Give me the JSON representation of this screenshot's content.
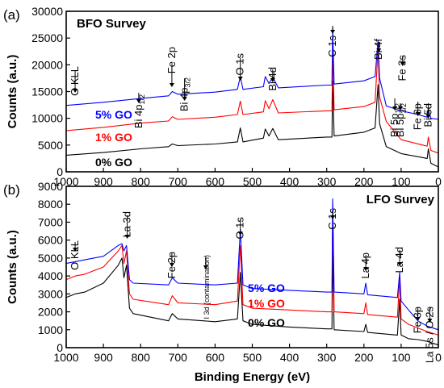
{
  "chart_data": [
    {
      "type": "line",
      "panel_label": "(a)",
      "title": "BFO Survey",
      "xlabel": "",
      "ylabel": "Counts (a.u.)",
      "xlim": [
        1000,
        0
      ],
      "ylim": [
        0,
        30000
      ],
      "yticks": [
        0,
        5000,
        10000,
        15000,
        20000,
        25000,
        30000
      ],
      "xticks": [
        1000,
        900,
        800,
        700,
        600,
        500,
        400,
        300,
        200,
        100,
        0
      ],
      "series": [
        {
          "name": "0% GO",
          "color": "#000000",
          "points": [
            [
              1000,
              3100
            ],
            [
              900,
              3600
            ],
            [
              800,
              4300
            ],
            [
              725,
              4700
            ],
            [
              715,
              5200
            ],
            [
              700,
              4900
            ],
            [
              600,
              5200
            ],
            [
              540,
              5600
            ],
            [
              532,
              8200
            ],
            [
              525,
              5600
            ],
            [
              470,
              6300
            ],
            [
              465,
              8000
            ],
            [
              455,
              6700
            ],
            [
              445,
              8100
            ],
            [
              430,
              6000
            ],
            [
              300,
              6500
            ],
            [
              286,
              6500
            ],
            [
              284,
              17000
            ],
            [
              280,
              6700
            ],
            [
              200,
              7400
            ],
            [
              170,
              8200
            ],
            [
              162,
              16300
            ],
            [
              158,
              9000
            ],
            [
              140,
              4700
            ],
            [
              100,
              3400
            ],
            [
              60,
              2900
            ],
            [
              30,
              2500
            ],
            [
              27,
              4300
            ],
            [
              20,
              1600
            ],
            [
              0,
              900
            ]
          ]
        },
        {
          "name": "1% GO",
          "color": "#ff0000",
          "points": [
            [
              1000,
              7700
            ],
            [
              900,
              8300
            ],
            [
              800,
              9100
            ],
            [
              725,
              9500
            ],
            [
              715,
              10300
            ],
            [
              700,
              9800
            ],
            [
              600,
              10200
            ],
            [
              540,
              10700
            ],
            [
              532,
              13200
            ],
            [
              525,
              10700
            ],
            [
              470,
              11200
            ],
            [
              465,
              13300
            ],
            [
              455,
              11800
            ],
            [
              445,
              13500
            ],
            [
              430,
              11000
            ],
            [
              300,
              11400
            ],
            [
              286,
              11400
            ],
            [
              284,
              23000
            ],
            [
              280,
              11600
            ],
            [
              200,
              12200
            ],
            [
              170,
              13000
            ],
            [
              162,
              23000
            ],
            [
              158,
              14000
            ],
            [
              140,
              9400
            ],
            [
              100,
              6000
            ],
            [
              60,
              5300
            ],
            [
              30,
              4800
            ],
            [
              27,
              6500
            ],
            [
              20,
              4000
            ],
            [
              0,
              3500
            ]
          ]
        },
        {
          "name": "5% GO",
          "color": "#0000ff",
          "points": [
            [
              1000,
              12400
            ],
            [
              900,
              13000
            ],
            [
              800,
              13700
            ],
            [
              725,
              14200
            ],
            [
              715,
              15000
            ],
            [
              700,
              14500
            ],
            [
              600,
              14900
            ],
            [
              540,
              15400
            ],
            [
              532,
              17800
            ],
            [
              525,
              15400
            ],
            [
              470,
              15900
            ],
            [
              465,
              17800
            ],
            [
              455,
              16500
            ],
            [
              445,
              17700
            ],
            [
              430,
              15700
            ],
            [
              300,
              16200
            ],
            [
              286,
              16200
            ],
            [
              284,
              27000
            ],
            [
              280,
              16400
            ],
            [
              200,
              17000
            ],
            [
              170,
              17800
            ],
            [
              162,
              24500
            ],
            [
              158,
              17500
            ],
            [
              140,
              12300
            ],
            [
              100,
              11400
            ],
            [
              60,
              10800
            ],
            [
              30,
              10200
            ],
            [
              27,
              11700
            ],
            [
              20,
              10000
            ],
            [
              0,
              9800
            ]
          ]
        }
      ],
      "series_labels": [
        "5% GO",
        "1% GO",
        "0% GO"
      ],
      "annotations": [
        {
          "label": "O KLL",
          "x": 976
        },
        {
          "label": "Bi 4p",
          "sub": "1/2",
          "x": 805
        },
        {
          "label": "Fe 2p",
          "x": 716
        },
        {
          "label": "Bi 4p",
          "sub": "3/2",
          "x": 682
        },
        {
          "label": "O 1s",
          "x": 532
        },
        {
          "label": "Bi 4d",
          "x": 445
        },
        {
          "label": "C 1s",
          "x": 284
        },
        {
          "label": "Bi 4f",
          "x": 160
        },
        {
          "label": "Fe 3s",
          "x": 96
        },
        {
          "label": "Bi 5p",
          "sub": "1/2",
          "x": 117
        },
        {
          "label": "Bi 5p",
          "sub": "3/2",
          "x": 102
        },
        {
          "label": "Fe 3p",
          "x": 55
        },
        {
          "label": "Bi 5d",
          "x": 27
        }
      ]
    },
    {
      "type": "line",
      "panel_label": "(b)",
      "title": "LFO Survey",
      "xlabel": "Binding Energy (eV)",
      "ylabel": "Counts (a.u.)",
      "xlim": [
        1000,
        0
      ],
      "ylim": [
        0,
        9000
      ],
      "yticks": [
        0,
        1000,
        2000,
        3000,
        4000,
        5000,
        6000,
        7000,
        8000,
        9000
      ],
      "xticks": [
        1000,
        900,
        800,
        700,
        600,
        500,
        400,
        300,
        200,
        100,
        0
      ],
      "series": [
        {
          "name": "0% GO",
          "color": "#000000",
          "points": [
            [
              1000,
              2800
            ],
            [
              975,
              3000
            ],
            [
              950,
              3100
            ],
            [
              900,
              3600
            ],
            [
              860,
              4600
            ],
            [
              850,
              5000
            ],
            [
              845,
              3900
            ],
            [
              838,
              4600
            ],
            [
              830,
              2200
            ],
            [
              820,
              1900
            ],
            [
              725,
              1500
            ],
            [
              715,
              1900
            ],
            [
              700,
              1600
            ],
            [
              600,
              1450
            ],
            [
              540,
              1600
            ],
            [
              532,
              4200
            ],
            [
              525,
              1500
            ],
            [
              500,
              1300
            ],
            [
              400,
              1150
            ],
            [
              300,
              1050
            ],
            [
              286,
              1050
            ],
            [
              284,
              5400
            ],
            [
              280,
              1000
            ],
            [
              200,
              900
            ],
            [
              195,
              1300
            ],
            [
              190,
              850
            ],
            [
              110,
              700
            ],
            [
              104,
              2700
            ],
            [
              100,
              700
            ],
            [
              80,
              500
            ],
            [
              55,
              450
            ],
            [
              30,
              350
            ],
            [
              0,
              150
            ]
          ]
        },
        {
          "name": "1% GO",
          "color": "#ff0000",
          "points": [
            [
              1000,
              3800
            ],
            [
              975,
              4000
            ],
            [
              950,
              4100
            ],
            [
              900,
              4500
            ],
            [
              860,
              5400
            ],
            [
              850,
              5700
            ],
            [
              845,
              4700
            ],
            [
              838,
              5400
            ],
            [
              830,
              3000
            ],
            [
              820,
              2700
            ],
            [
              725,
              2400
            ],
            [
              715,
              2900
            ],
            [
              700,
              2500
            ],
            [
              600,
              2400
            ],
            [
              540,
              2600
            ],
            [
              532,
              5700
            ],
            [
              525,
              2400
            ],
            [
              500,
              2200
            ],
            [
              400,
              2100
            ],
            [
              300,
              2000
            ],
            [
              286,
              2000
            ],
            [
              284,
              8000
            ],
            [
              280,
              2000
            ],
            [
              200,
              1900
            ],
            [
              195,
              2500
            ],
            [
              190,
              1850
            ],
            [
              110,
              1700
            ],
            [
              104,
              3900
            ],
            [
              100,
              1600
            ],
            [
              80,
              1300
            ],
            [
              55,
              1100
            ],
            [
              30,
              900
            ],
            [
              0,
              700
            ]
          ]
        },
        {
          "name": "5% GO",
          "color": "#0000ff",
          "points": [
            [
              1000,
              4700
            ],
            [
              975,
              4800
            ],
            [
              950,
              4900
            ],
            [
              900,
              5100
            ],
            [
              860,
              5700
            ],
            [
              850,
              5800
            ],
            [
              845,
              5400
            ],
            [
              838,
              5700
            ],
            [
              830,
              3800
            ],
            [
              820,
              3600
            ],
            [
              725,
              3500
            ],
            [
              715,
              3900
            ],
            [
              700,
              3600
            ],
            [
              600,
              3500
            ],
            [
              540,
              3600
            ],
            [
              532,
              6600
            ],
            [
              525,
              3500
            ],
            [
              500,
              3300
            ],
            [
              400,
              3200
            ],
            [
              300,
              3100
            ],
            [
              286,
              3100
            ],
            [
              284,
              8300
            ],
            [
              280,
              3100
            ],
            [
              200,
              3000
            ],
            [
              195,
              3600
            ],
            [
              190,
              2950
            ],
            [
              110,
              2800
            ],
            [
              104,
              4200
            ],
            [
              100,
              2600
            ],
            [
              80,
              2100
            ],
            [
              55,
              1500
            ],
            [
              30,
              1200
            ],
            [
              0,
              1000
            ]
          ]
        }
      ],
      "series_labels": [
        "5% GO",
        "1% GO",
        "0% GO"
      ],
      "annotations": [
        {
          "label": "O KLL",
          "x": 976
        },
        {
          "label": "La 3d",
          "x": 836
        },
        {
          "label": "Fe 2p",
          "x": 716
        },
        {
          "label": "I 3d (contamination)",
          "x": 625
        },
        {
          "label": "O 1s",
          "x": 532
        },
        {
          "label": "C 1s",
          "x": 284
        },
        {
          "label": "La 4p",
          "x": 195
        },
        {
          "label": "La 4d",
          "x": 104
        },
        {
          "label": "Fe 3p",
          "x": 55
        },
        {
          "label": "La 5s / O 2s",
          "x": 23
        }
      ]
    }
  ]
}
